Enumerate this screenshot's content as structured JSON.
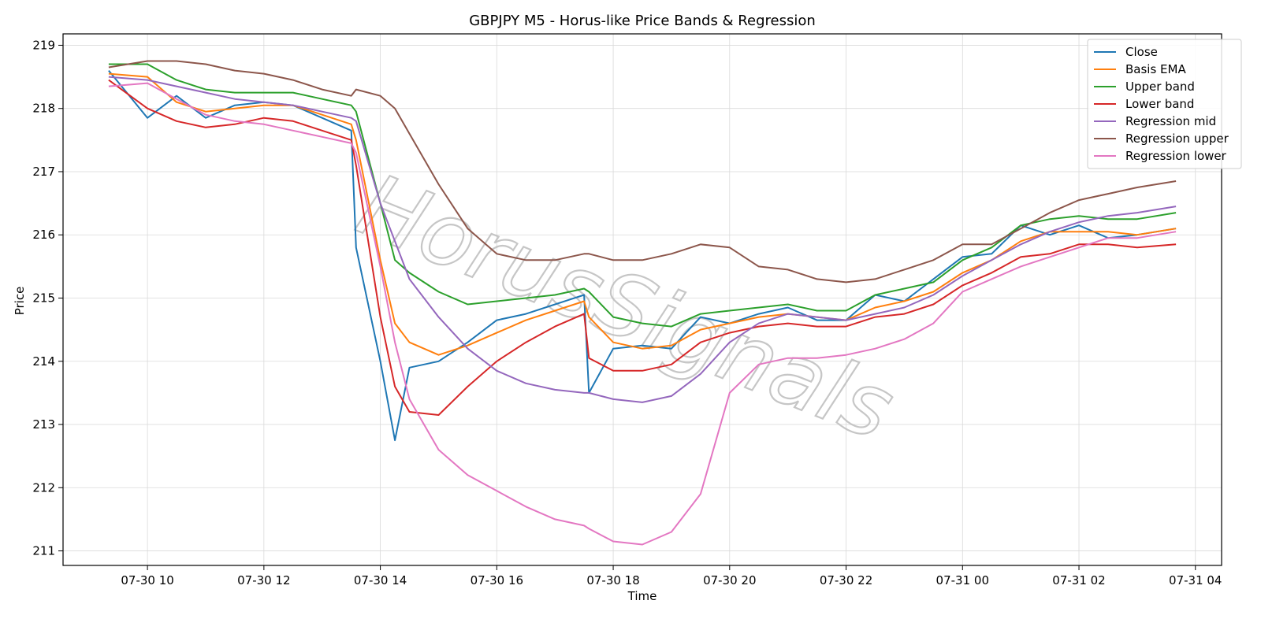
{
  "chart_data": {
    "type": "line",
    "title": "GBPJPY M5 - Horus-like Price Bands & Regression",
    "xlabel": "Time",
    "ylabel": "Price",
    "ylim": [
      210.77,
      219.18
    ],
    "xlim": [
      "07-30 08:33",
      "07-31 04:27"
    ],
    "grid": true,
    "legend_position": "top-right",
    "x_ticks": [
      "07-30 10",
      "07-30 12",
      "07-30 14",
      "07-30 16",
      "07-30 18",
      "07-30 20",
      "07-30 22",
      "07-31 00",
      "07-31 02",
      "07-31 04"
    ],
    "y_ticks": [
      211,
      212,
      213,
      214,
      215,
      216,
      217,
      218,
      219
    ],
    "watermark": "HorusSignals",
    "x": [
      "07-30 09:20",
      "07-30 10:00",
      "07-30 10:30",
      "07-30 11:00",
      "07-30 11:30",
      "07-30 12:00",
      "07-30 12:30",
      "07-30 13:00",
      "07-30 13:30",
      "07-30 13:35",
      "07-30 14:00",
      "07-30 14:15",
      "07-30 14:30",
      "07-30 15:00",
      "07-30 15:30",
      "07-30 16:00",
      "07-30 16:30",
      "07-30 17:00",
      "07-30 17:30",
      "07-30 17:35",
      "07-30 18:00",
      "07-30 18:30",
      "07-30 19:00",
      "07-30 19:30",
      "07-30 20:00",
      "07-30 20:30",
      "07-30 21:00",
      "07-30 21:30",
      "07-30 22:00",
      "07-30 22:30",
      "07-30 23:00",
      "07-30 23:30",
      "07-31 00:00",
      "07-31 00:30",
      "07-31 01:00",
      "07-31 01:30",
      "07-31 02:00",
      "07-31 02:30",
      "07-31 03:00",
      "07-31 03:40"
    ],
    "series": [
      {
        "name": "Close",
        "color": "#1f77b4",
        "values": [
          218.6,
          217.85,
          218.2,
          217.85,
          218.05,
          218.1,
          218.05,
          217.85,
          217.65,
          215.8,
          214.0,
          212.75,
          213.9,
          214.0,
          214.3,
          214.65,
          214.75,
          214.9,
          215.05,
          213.5,
          214.2,
          214.25,
          214.2,
          214.7,
          214.6,
          214.75,
          214.85,
          214.65,
          214.65,
          215.05,
          214.95,
          215.3,
          215.65,
          215.7,
          216.15,
          216.0,
          216.15,
          215.95,
          216.0,
          216.1
        ]
      },
      {
        "name": "Basis EMA",
        "color": "#ff7f0e",
        "values": [
          218.55,
          218.5,
          218.1,
          217.95,
          218.0,
          218.05,
          218.05,
          217.9,
          217.75,
          217.5,
          215.6,
          214.6,
          214.3,
          214.1,
          214.25,
          214.45,
          214.65,
          214.8,
          214.95,
          214.7,
          214.3,
          214.2,
          214.25,
          214.5,
          214.6,
          214.7,
          214.75,
          214.7,
          214.65,
          214.85,
          214.95,
          215.1,
          215.4,
          215.6,
          215.9,
          216.05,
          216.05,
          216.05,
          216.0,
          216.1
        ]
      },
      {
        "name": "Upper band",
        "color": "#2ca02c",
        "values": [
          218.7,
          218.7,
          218.45,
          218.3,
          218.25,
          218.25,
          218.25,
          218.15,
          218.05,
          217.95,
          216.5,
          215.6,
          215.4,
          215.1,
          214.9,
          214.95,
          215.0,
          215.05,
          215.15,
          215.1,
          214.7,
          214.6,
          214.55,
          214.75,
          214.8,
          214.85,
          214.9,
          214.8,
          214.8,
          215.05,
          215.15,
          215.25,
          215.6,
          215.8,
          216.15,
          216.25,
          216.3,
          216.25,
          216.25,
          216.35
        ]
      },
      {
        "name": "Lower band",
        "color": "#d62728",
        "values": [
          218.45,
          218.0,
          217.8,
          217.7,
          217.75,
          217.85,
          217.8,
          217.65,
          217.5,
          217.1,
          214.7,
          213.6,
          213.2,
          213.15,
          213.6,
          214.0,
          214.3,
          214.55,
          214.75,
          214.05,
          213.85,
          213.85,
          213.95,
          214.3,
          214.45,
          214.55,
          214.6,
          214.55,
          214.55,
          214.7,
          214.75,
          214.9,
          215.2,
          215.4,
          215.65,
          215.7,
          215.85,
          215.85,
          215.8,
          215.85
        ]
      },
      {
        "name": "Regression mid",
        "color": "#9467bd",
        "values": [
          218.5,
          218.45,
          218.35,
          218.25,
          218.15,
          218.1,
          218.05,
          217.95,
          217.85,
          217.8,
          216.5,
          215.9,
          215.3,
          214.7,
          214.2,
          213.85,
          213.65,
          213.55,
          213.5,
          213.5,
          213.4,
          213.35,
          213.45,
          213.8,
          214.3,
          214.6,
          214.75,
          214.7,
          214.65,
          214.75,
          214.85,
          215.05,
          215.35,
          215.6,
          215.85,
          216.05,
          216.2,
          216.3,
          216.35,
          216.45
        ]
      },
      {
        "name": "Regression upper",
        "color": "#8c564b",
        "values": [
          218.65,
          218.75,
          218.75,
          218.7,
          218.6,
          218.55,
          218.45,
          218.3,
          218.2,
          218.3,
          218.2,
          218.0,
          217.6,
          216.8,
          216.1,
          215.7,
          215.6,
          215.6,
          215.7,
          215.7,
          215.6,
          215.6,
          215.7,
          215.85,
          215.8,
          215.5,
          215.45,
          215.3,
          215.25,
          215.3,
          215.45,
          215.6,
          215.85,
          215.85,
          216.1,
          216.35,
          216.55,
          216.65,
          216.75,
          216.85
        ]
      },
      {
        "name": "Regression lower",
        "color": "#e377c2",
        "values": [
          218.35,
          218.4,
          218.15,
          217.9,
          217.8,
          217.75,
          217.65,
          217.55,
          217.45,
          217.3,
          215.5,
          214.3,
          213.4,
          212.6,
          212.2,
          211.95,
          211.7,
          211.5,
          211.4,
          211.35,
          211.15,
          211.1,
          211.3,
          211.9,
          213.5,
          213.95,
          214.05,
          214.05,
          214.1,
          214.2,
          214.35,
          214.6,
          215.1,
          215.3,
          215.5,
          215.65,
          215.8,
          215.95,
          215.95,
          216.05
        ]
      }
    ]
  }
}
